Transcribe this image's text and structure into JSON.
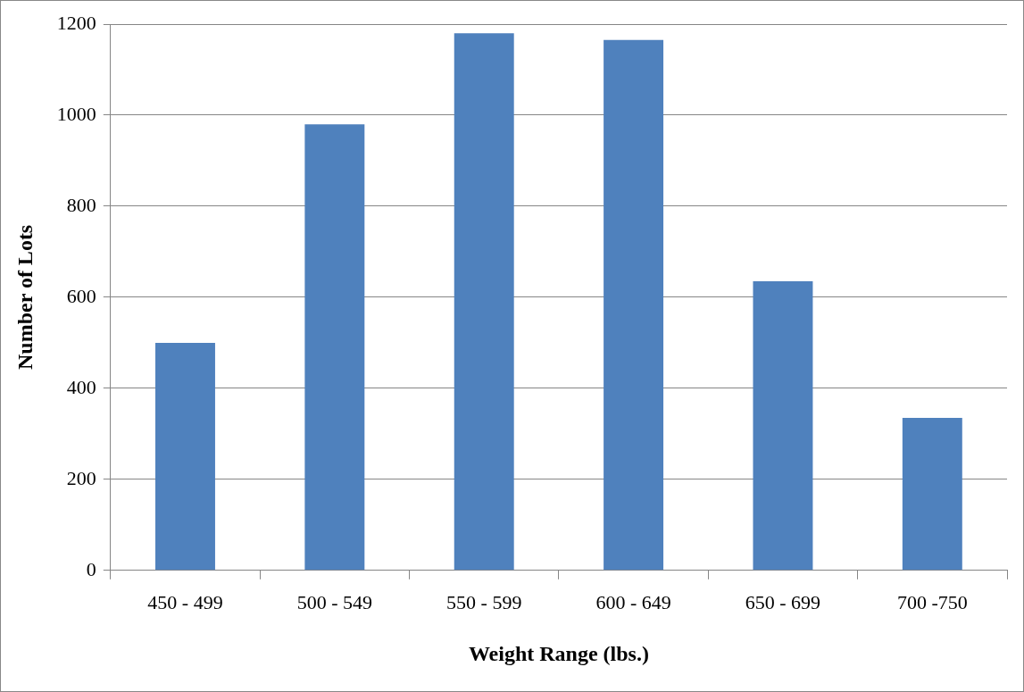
{
  "chart_data": {
    "type": "bar",
    "xlabel": "Weight Range (lbs.)",
    "ylabel": "Number of Lots",
    "categories": [
      "450 - 499",
      "500 - 549",
      "550 - 599",
      "600 - 649",
      "650 - 699",
      "700 -750"
    ],
    "values": [
      500,
      980,
      1180,
      1165,
      635,
      335
    ],
    "color": "#4f81bd",
    "ylim": [
      0,
      1200
    ],
    "yticks": [
      0,
      200,
      400,
      600,
      800,
      1000,
      1200
    ],
    "grid": "y",
    "legend": false
  }
}
